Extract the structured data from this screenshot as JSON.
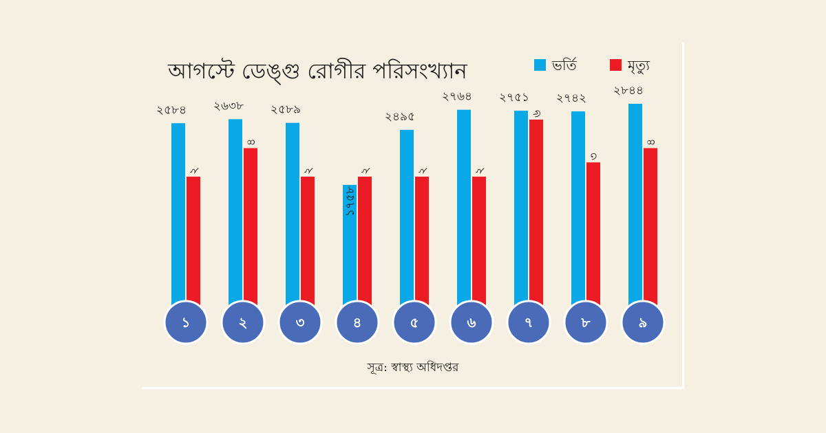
{
  "chart_data": {
    "type": "bar",
    "title": "আগস্টে ডেঙ্গু রোগীর পরিসংখ্যান",
    "categories": [
      "১",
      "২",
      "৩",
      "৪",
      "৫",
      "৬",
      "৭",
      "৮",
      "৯"
    ],
    "series": [
      {
        "name": "ভর্তি",
        "color": "#0aa8e6",
        "values": [
          2584,
          2638,
          2589,
          1758,
          2495,
          2764,
          2751,
          2742,
          2844
        ],
        "labels": [
          "২৫৮৪",
          "২৬৩৮",
          "২৫৮৯",
          "১৭৫৮",
          "২৪৯৫",
          "২৭৬৪",
          "২৭৫১",
          "২৭৪২",
          "২৮৪৪"
        ]
      },
      {
        "name": "মৃত্যু",
        "color": "#ec1c24",
        "values": [
          2,
          4,
          2,
          2,
          2,
          2,
          6,
          3,
          4
        ],
        "labels": [
          "২",
          "৪",
          "২",
          "২",
          "২",
          "২",
          "৬",
          "৩",
          "৪"
        ]
      }
    ],
    "day_circle_color": "#4a6cb8",
    "source": "সূত্র: স্বাস্থ্য অধিদপ্তর"
  }
}
